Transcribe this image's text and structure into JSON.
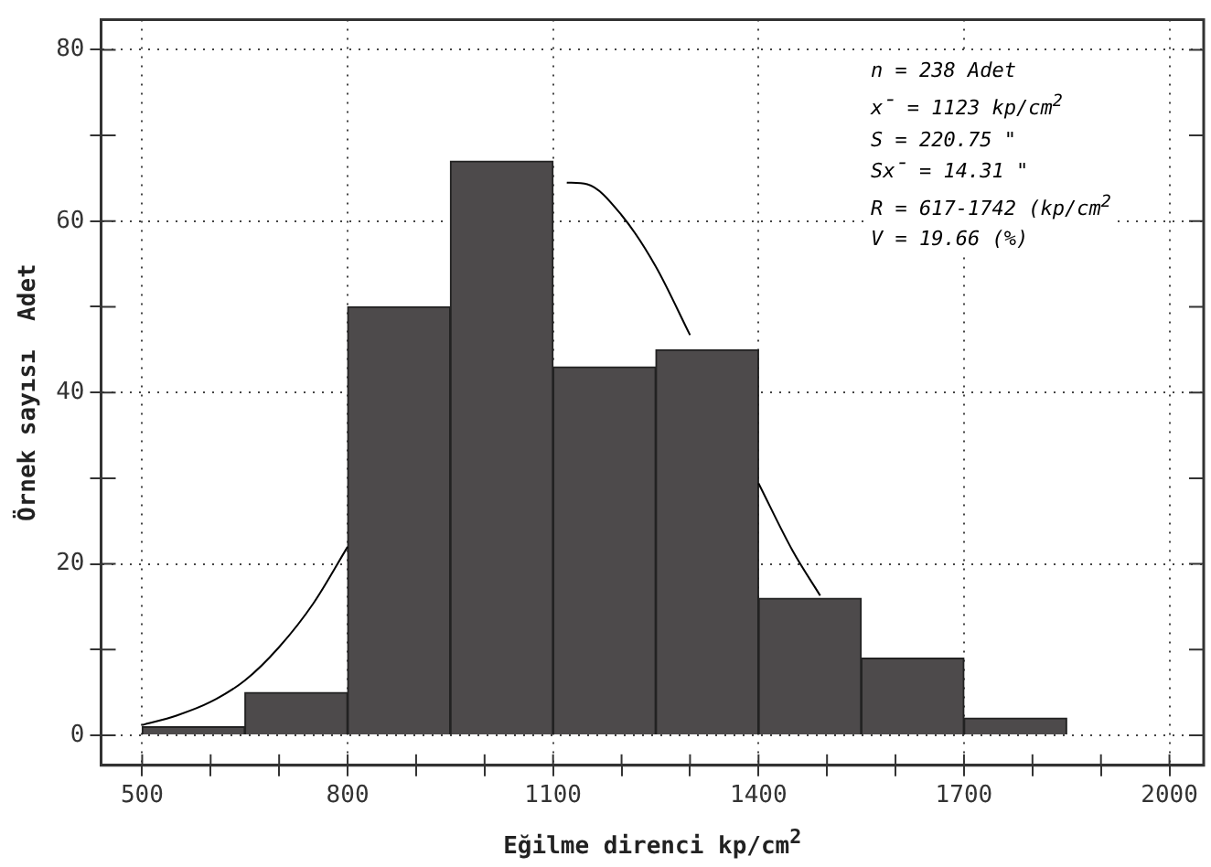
{
  "chart_data": {
    "type": "histogram",
    "xlabel": "Eğilme direnci  kp/cm$^{2}$",
    "ylabel": "Örnek sayısı  Adet",
    "bins": [
      500,
      650,
      800,
      950,
      1100,
      1250,
      1400,
      1550,
      1700,
      1850
    ],
    "values": [
      1,
      5,
      50,
      67,
      43,
      45,
      16,
      9,
      2
    ],
    "color": "#4d4a4b",
    "series": [
      {
        "type": "line",
        "color": "#000000",
        "x": [
          500,
          550,
          600,
          650,
          700,
          750,
          800,
          950,
          1120,
          1150,
          1200,
          1250,
          1300,
          1350,
          1400,
          1450,
          1490
        ],
        "values": [
          1.2,
          2.3,
          3.9,
          6.4,
          10.3,
          15.4,
          22,
          null,
          64.5,
          64.3,
          60.7,
          54.7,
          46.7,
          null,
          29.4,
          21.5,
          16.3
        ]
      }
    ],
    "xlim": [
      440,
      2050
    ],
    "ylim": [
      -3.5,
      83.5
    ],
    "xticks": [
      500,
      {
        "value": 600,
        "label": null
      },
      {
        "value": 700,
        "label": null
      },
      800,
      {
        "value": 900,
        "label": null
      },
      {
        "value": 1000,
        "label": null
      },
      1100,
      {
        "value": 1200,
        "label": null
      },
      {
        "value": 1300,
        "label": null
      },
      1400,
      {
        "value": 1500,
        "label": null
      },
      {
        "value": 1600,
        "label": null
      },
      1700,
      {
        "value": 1800,
        "label": null
      },
      {
        "value": 1900,
        "label": null
      },
      2000
    ],
    "yticks": [
      0,
      {
        "value": 10,
        "label": null
      },
      20,
      {
        "value": 30,
        "label": null
      },
      40,
      {
        "value": 50,
        "label": null
      },
      60,
      {
        "value": 70,
        "label": null
      },
      80
    ],
    "grid": true,
    "legend": false,
    "marker": "none",
    "line_style": "solid",
    "annotations": [
      "n = 238 Adet",
      "x̄ = 1123  kp/cm$^{2}$",
      "S = 220.75   \"",
      "Sx̄ =  14.31   \"",
      "R = 617-1742 (kp/cm$^{2}$",
      "V =  19.66 (%)"
    ]
  }
}
